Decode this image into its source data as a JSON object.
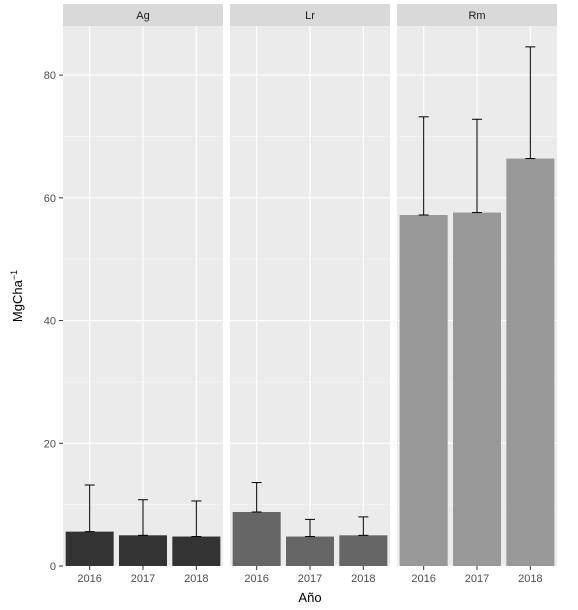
{
  "chart_data": {
    "type": "bar",
    "xlabel": "Año",
    "ylabel": "MgCha",
    "ylabel_superscript": "−1",
    "ylim": [
      0,
      88
    ],
    "yticks": [
      0,
      20,
      40,
      60,
      80
    ],
    "grid": true,
    "categories": [
      "2016",
      "2017",
      "2018"
    ],
    "facets": [
      {
        "name": "Ag",
        "color": "#333333",
        "values": [
          5.6,
          5.0,
          4.8
        ],
        "error_upper": [
          13.2,
          10.8,
          10.6
        ]
      },
      {
        "name": "Lr",
        "color": "#666666",
        "values": [
          8.8,
          4.8,
          5.0
        ],
        "error_upper": [
          13.6,
          7.6,
          8.0
        ]
      },
      {
        "name": "Rm",
        "color": "#999999",
        "values": [
          57.2,
          57.6,
          66.4
        ],
        "error_upper": [
          73.2,
          72.8,
          84.6
        ]
      }
    ]
  }
}
